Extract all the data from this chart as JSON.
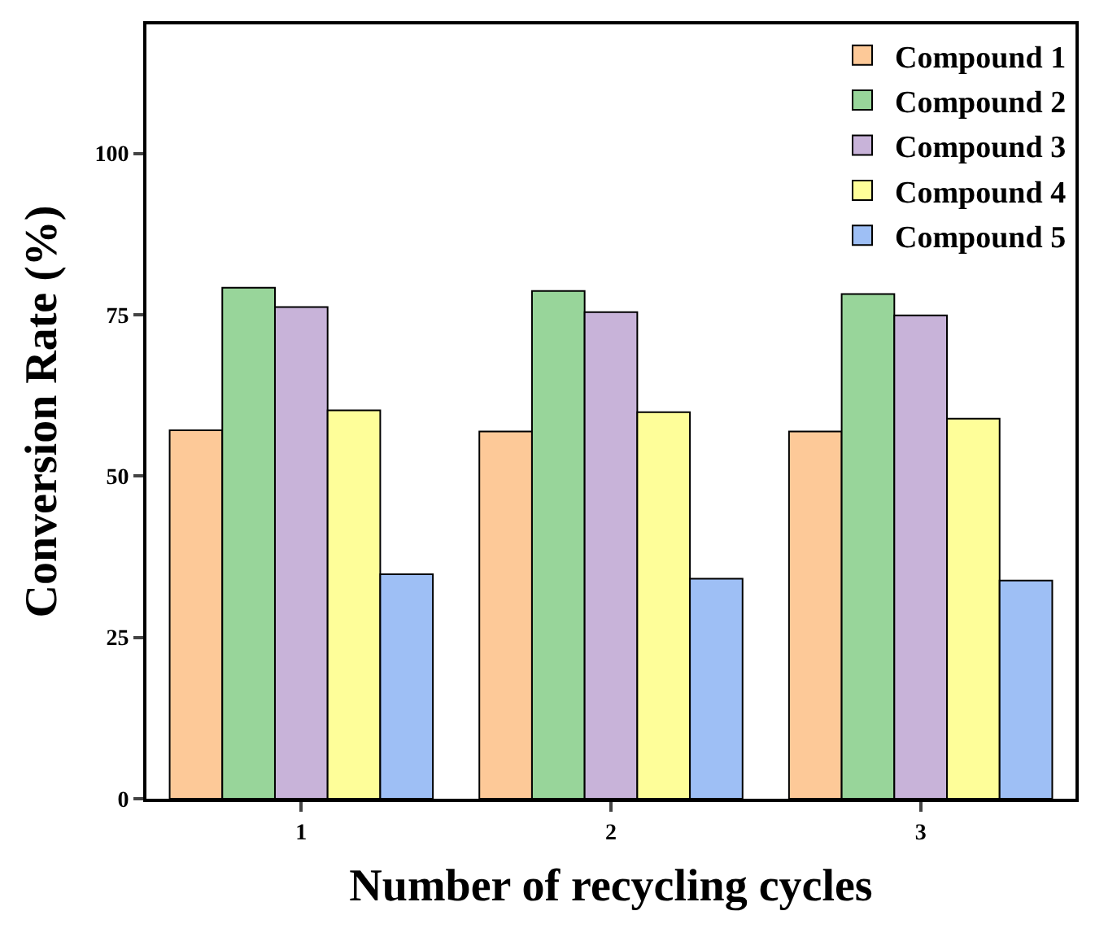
{
  "chart_data": {
    "type": "bar",
    "xlabel": "Number of recycling cycles",
    "ylabel": "Conversion Rate (%)",
    "categories": [
      "1",
      "2",
      "3"
    ],
    "series": [
      {
        "name": "Compound 1",
        "color": "#fdc998",
        "values": [
          57.1,
          56.9,
          56.9
        ]
      },
      {
        "name": "Compound 2",
        "color": "#98d59a",
        "values": [
          79.2,
          78.7,
          78.2
        ]
      },
      {
        "name": "Compound 3",
        "color": "#c8b3d9",
        "values": [
          76.2,
          75.4,
          74.9
        ]
      },
      {
        "name": "Compound 4",
        "color": "#fefe99",
        "values": [
          60.2,
          59.9,
          58.9
        ]
      },
      {
        "name": "Compound 5",
        "color": "#9ebff5",
        "values": [
          34.8,
          34.1,
          33.8
        ]
      }
    ],
    "ylim": [
      0,
      120
    ],
    "yticks": [
      0,
      25,
      50,
      75,
      100
    ],
    "legend": "top right"
  }
}
